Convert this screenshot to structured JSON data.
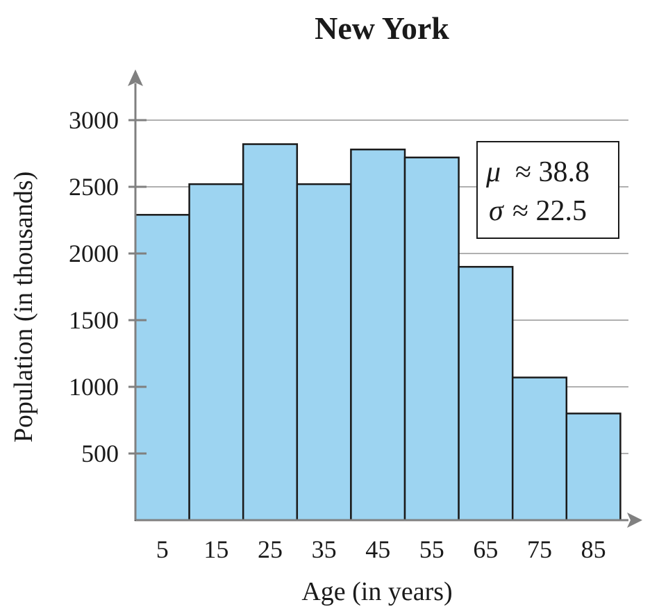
{
  "chart_data": {
    "type": "bar",
    "title": "New York",
    "xlabel": "Age (in years)",
    "ylabel": "Population (in thousands)",
    "categories": [
      "5",
      "15",
      "25",
      "35",
      "45",
      "55",
      "65",
      "75",
      "85"
    ],
    "values": [
      2290,
      2520,
      2820,
      2520,
      2780,
      2720,
      1900,
      1070,
      800
    ],
    "yticks": [
      500,
      1000,
      1500,
      2000,
      2500,
      3000
    ],
    "ylim": [
      0,
      3300
    ],
    "grid": true,
    "bar_color": "#9dd4f1",
    "bar_edge_color": "#1a1a1a",
    "axis_color": "#808080",
    "grid_color": "#b0b0b0",
    "stats": {
      "mu_symbol": "μ",
      "mu_text": "≈ 38.8",
      "sigma_symbol": "σ",
      "sigma_text": "≈ 22.5"
    }
  }
}
